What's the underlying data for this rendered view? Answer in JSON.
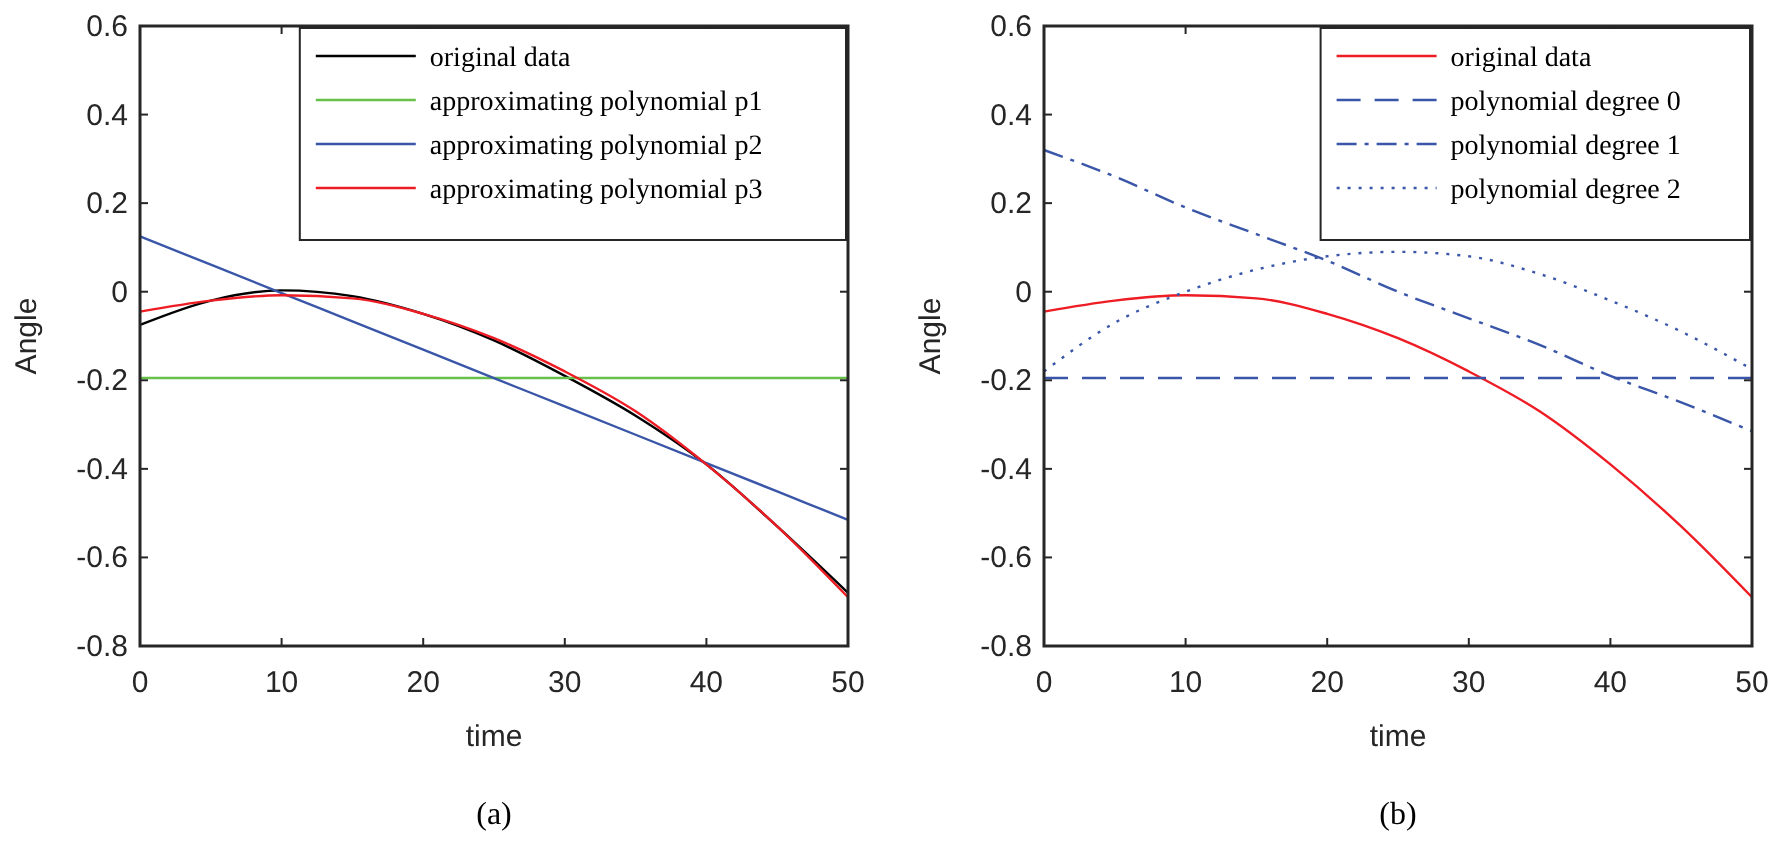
{
  "chart_data": [
    {
      "type": "line",
      "xlabel": "time",
      "ylabel": "Angle",
      "annotations": [
        "(a)"
      ],
      "legend": "top right",
      "grid": false,
      "xlim": [
        0,
        50
      ],
      "ylim": [
        -0.8,
        0.6
      ],
      "xticks": [
        0,
        10,
        20,
        30,
        40,
        50
      ],
      "yticks": [
        -0.8,
        -0.6,
        -0.4,
        -0.2,
        0,
        0.2,
        0.4,
        0.6
      ],
      "x": [
        0,
        5,
        10,
        15,
        20,
        25,
        30,
        35,
        40,
        45,
        50
      ],
      "series": [
        {
          "name": "original data",
          "color": "#000000",
          "values": [
            -0.075,
            -0.02,
            0.003,
            -0.01,
            -0.05,
            -0.11,
            -0.19,
            -0.28,
            -0.39,
            -0.53,
            -0.68
          ]
        },
        {
          "name": "approximating polynomial p1",
          "color": "#66c04a",
          "values": [
            -0.195,
            -0.195,
            -0.195,
            -0.195,
            -0.195,
            -0.195,
            -0.195,
            -0.195,
            -0.195,
            -0.195,
            -0.195
          ]
        },
        {
          "name": "approximating polynomial p2",
          "color": "#3a56a8",
          "values": [
            0.125,
            0.061,
            -0.003,
            -0.067,
            -0.131,
            -0.195,
            -0.259,
            -0.323,
            -0.387,
            -0.451,
            -0.515
          ]
        },
        {
          "name": "approximating polynomial p3",
          "color": "#ee1c24",
          "values": [
            -0.045,
            -0.02,
            -0.008,
            -0.015,
            -0.05,
            -0.105,
            -0.18,
            -0.27,
            -0.39,
            -0.53,
            -0.69
          ]
        }
      ]
    },
    {
      "type": "line",
      "xlabel": "time",
      "ylabel": "Angle",
      "annotations": [
        "(b)"
      ],
      "legend": "top right",
      "grid": false,
      "xlim": [
        0,
        50
      ],
      "ylim": [
        -0.8,
        0.6
      ],
      "xticks": [
        0,
        10,
        20,
        30,
        40,
        50
      ],
      "yticks": [
        -0.8,
        -0.6,
        -0.4,
        -0.2,
        0,
        0.2,
        0.4,
        0.6
      ],
      "x": [
        0,
        5,
        10,
        15,
        20,
        25,
        30,
        35,
        40,
        45,
        50
      ],
      "series": [
        {
          "name": "original data",
          "color": "#ee1c24",
          "line_style": "solid",
          "values": [
            -0.045,
            -0.02,
            -0.008,
            -0.015,
            -0.05,
            -0.105,
            -0.18,
            -0.27,
            -0.39,
            -0.53,
            -0.69
          ]
        },
        {
          "name": "polynomial degree 0",
          "color": "#3a56a8",
          "line_style": "dashed",
          "values": [
            -0.195,
            -0.195,
            -0.195,
            -0.195,
            -0.195,
            -0.195,
            -0.195,
            -0.195,
            -0.195,
            -0.195,
            -0.195
          ]
        },
        {
          "name": "polynomial degree 1",
          "color": "#3a56a8",
          "line_style": "dashdot",
          "values": [
            0.32,
            0.26,
            0.19,
            0.13,
            0.07,
            0.0,
            -0.06,
            -0.12,
            -0.19,
            -0.25,
            -0.315
          ]
        },
        {
          "name": "polynomial degree 2",
          "color": "#3a56a8",
          "line_style": "dotted",
          "values": [
            -0.18,
            -0.07,
            0.0,
            0.05,
            0.08,
            0.09,
            0.08,
            0.04,
            -0.02,
            -0.09,
            -0.175
          ]
        }
      ]
    }
  ]
}
